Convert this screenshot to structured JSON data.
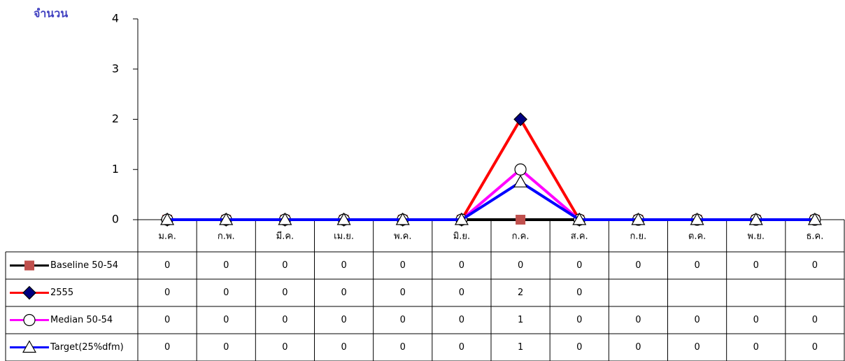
{
  "chart_data": {
    "type": "line",
    "y_label": "จำนวน",
    "categories": [
      "ม.ค.",
      "ก.พ.",
      "มี.ค.",
      "เม.ย.",
      "พ.ค.",
      "มิ.ย.",
      "ก.ค.",
      "ส.ค.",
      "ก.ย.",
      "ต.ค.",
      "พ.ย.",
      "ธ.ค."
    ],
    "ylim": [
      0,
      4
    ],
    "yticks": [
      0,
      1,
      2,
      3,
      4
    ],
    "series": [
      {
        "name": "Baseline 50-54",
        "color": "#000000",
        "marker": "square",
        "marker_color": "#c0504d",
        "values": [
          0,
          0,
          0,
          0,
          0,
          0,
          0,
          0,
          0,
          0,
          0,
          0
        ]
      },
      {
        "name": "2555",
        "color": "#ff0000",
        "marker": "diamond",
        "marker_color": "#000080",
        "values": [
          0,
          0,
          0,
          0,
          0,
          0,
          2,
          0,
          null,
          null,
          null,
          null
        ]
      },
      {
        "name": "Median 50-54",
        "color": "#ff00ff",
        "marker": "circle",
        "marker_color": "#ffffff",
        "values": [
          0,
          0,
          0,
          0,
          0,
          0,
          1,
          0,
          0,
          0,
          0,
          0
        ]
      },
      {
        "name": "Target(25%dfm)",
        "color": "#0000ff",
        "marker": "triangle",
        "marker_color": "#ffffff",
        "values": [
          0,
          0,
          0,
          0,
          0,
          0,
          0.75,
          0,
          0,
          0,
          0,
          0
        ],
        "value_labels": [
          "0",
          "0",
          "0",
          "0",
          "0",
          "0",
          "1",
          "0",
          "0",
          "0",
          "0",
          "0"
        ]
      }
    ]
  }
}
